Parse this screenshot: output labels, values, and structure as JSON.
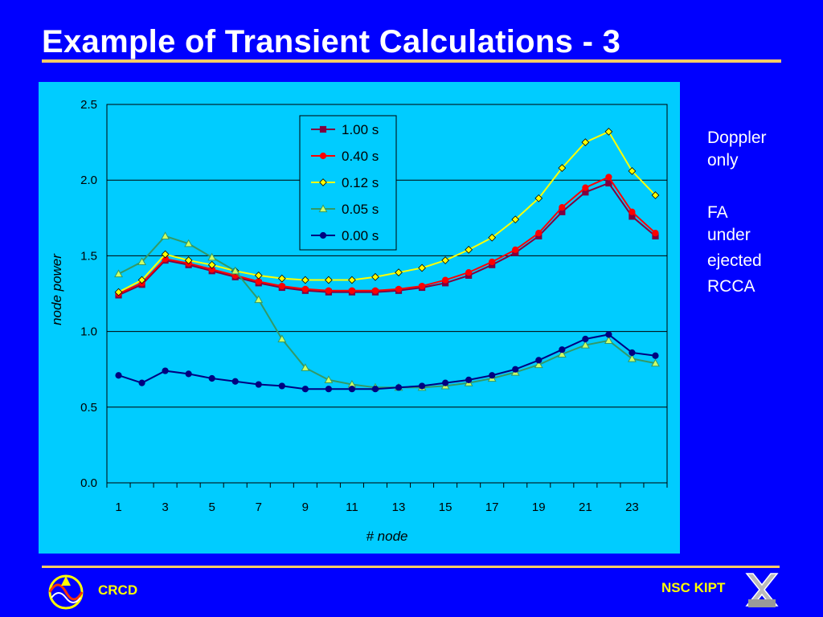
{
  "slide": {
    "title": "Example of Transient Calculations - 3",
    "side_note": {
      "line1": "Doppler",
      "line2": "only",
      "line3": "FA",
      "line4": "under",
      "line5": "ejected",
      "line6": "RCCA"
    },
    "footer_left": "CRCD",
    "footer_right": "NSC KIPT",
    "colors": {
      "background": "#0000FF",
      "chart_area": "#00CCFF",
      "rule": "#FFCC66",
      "footer_text": "#FFFF00"
    }
  },
  "chart_data": {
    "type": "line",
    "title": "",
    "xlabel": "# node",
    "ylabel": "node power",
    "x": [
      1,
      2,
      3,
      4,
      5,
      6,
      7,
      8,
      9,
      10,
      11,
      12,
      13,
      14,
      15,
      16,
      17,
      18,
      19,
      20,
      21,
      22,
      23,
      24
    ],
    "x_tick_labels": [
      "1",
      "3",
      "5",
      "7",
      "9",
      "11",
      "13",
      "15",
      "17",
      "19",
      "21",
      "23"
    ],
    "y_tick_labels": [
      "0.0",
      "0.5",
      "1.0",
      "1.5",
      "2.0",
      "2.5"
    ],
    "ylim": [
      0,
      2.5
    ],
    "grid": "horizontal",
    "legend_position": "top-center",
    "series": [
      {
        "name": "1.00 s",
        "color": "#800040",
        "marker": "square",
        "values": [
          1.24,
          1.31,
          1.47,
          1.44,
          1.4,
          1.36,
          1.32,
          1.29,
          1.27,
          1.26,
          1.26,
          1.26,
          1.27,
          1.29,
          1.32,
          1.37,
          1.44,
          1.52,
          1.63,
          1.79,
          1.92,
          1.98,
          1.76,
          1.63
        ]
      },
      {
        "name": "0.40 s",
        "color": "#FF0000",
        "marker": "circle",
        "values": [
          1.25,
          1.32,
          1.48,
          1.45,
          1.41,
          1.37,
          1.33,
          1.3,
          1.28,
          1.27,
          1.27,
          1.27,
          1.28,
          1.3,
          1.34,
          1.39,
          1.46,
          1.54,
          1.65,
          1.82,
          1.95,
          2.02,
          1.79,
          1.65
        ]
      },
      {
        "name": "0.12 s",
        "color": "#FFFF00",
        "marker": "diamond",
        "values": [
          1.26,
          1.34,
          1.51,
          1.47,
          1.44,
          1.4,
          1.37,
          1.35,
          1.34,
          1.34,
          1.34,
          1.36,
          1.39,
          1.42,
          1.47,
          1.54,
          1.62,
          1.74,
          1.88,
          2.08,
          2.25,
          2.32,
          2.06,
          1.9
        ]
      },
      {
        "name": "0.05 s",
        "color": "#339966",
        "marker": "triangle",
        "values": [
          1.38,
          1.46,
          1.63,
          1.58,
          1.49,
          1.4,
          1.21,
          0.95,
          0.76,
          0.68,
          0.65,
          0.63,
          0.63,
          0.63,
          0.64,
          0.66,
          0.69,
          0.73,
          0.78,
          0.85,
          0.91,
          0.94,
          0.82,
          0.79
        ]
      },
      {
        "name": "0.00 s",
        "color": "#000080",
        "marker": "circle",
        "values": [
          0.71,
          0.66,
          0.74,
          0.72,
          0.69,
          0.67,
          0.65,
          0.64,
          0.62,
          0.62,
          0.62,
          0.62,
          0.63,
          0.64,
          0.66,
          0.68,
          0.71,
          0.75,
          0.81,
          0.88,
          0.95,
          0.98,
          0.86,
          0.84
        ]
      }
    ]
  }
}
